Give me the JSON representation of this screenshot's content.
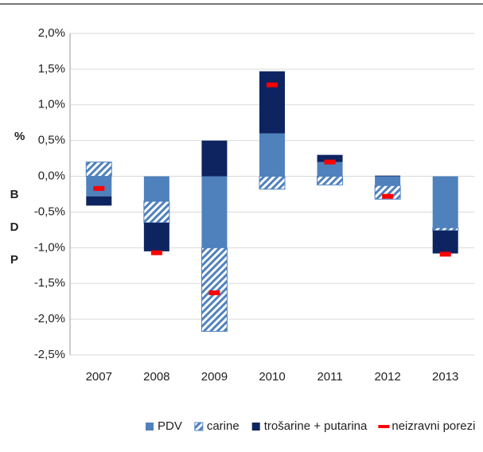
{
  "chart_data": {
    "type": "bar",
    "stacked": true,
    "y_label": "%",
    "y_label_vertical": "BDP",
    "categories": [
      "2007",
      "2008",
      "2009",
      "2010",
      "2011",
      "2012",
      "2013"
    ],
    "series": [
      {
        "name": "PDV",
        "color": "#4f81bd",
        "pattern": "solid",
        "values": [
          -0.28,
          -0.35,
          -1.0,
          0.6,
          0.2,
          -0.13,
          -0.72
        ]
      },
      {
        "name": "carine",
        "color": "#4f81bd",
        "pattern": "hatch",
        "values": [
          0.2,
          -0.3,
          -1.17,
          -0.18,
          -0.12,
          -0.19,
          -0.04
        ]
      },
      {
        "name": "trošarine + putarina",
        "color": "#0d2461",
        "pattern": "solid",
        "values": [
          -0.13,
          -0.4,
          0.5,
          0.87,
          0.1,
          0.01,
          -0.32
        ]
      },
      {
        "name": "neizravni porezi",
        "color": "#ff0000",
        "type": "marker",
        "values": [
          -0.17,
          -1.07,
          -1.63,
          1.28,
          0.2,
          -0.28,
          -1.09
        ]
      }
    ],
    "ylim": [
      -2.5,
      2.0
    ],
    "yticks": [
      {
        "value": -2.5,
        "label": "-2,5%"
      },
      {
        "value": -2.0,
        "label": "-2,0%"
      },
      {
        "value": -1.5,
        "label": "-1,5%"
      },
      {
        "value": -1.0,
        "label": "-1,0%"
      },
      {
        "value": -0.5,
        "label": "-0,5%"
      },
      {
        "value": 0,
        "label": "0,0%"
      },
      {
        "value": 0.5,
        "label": "0,5%"
      },
      {
        "value": 1.0,
        "label": "1,0%"
      },
      {
        "value": 1.5,
        "label": "1,5%"
      },
      {
        "value": 2.0,
        "label": "2,0%"
      }
    ],
    "grid": true,
    "legend": "bottom"
  }
}
